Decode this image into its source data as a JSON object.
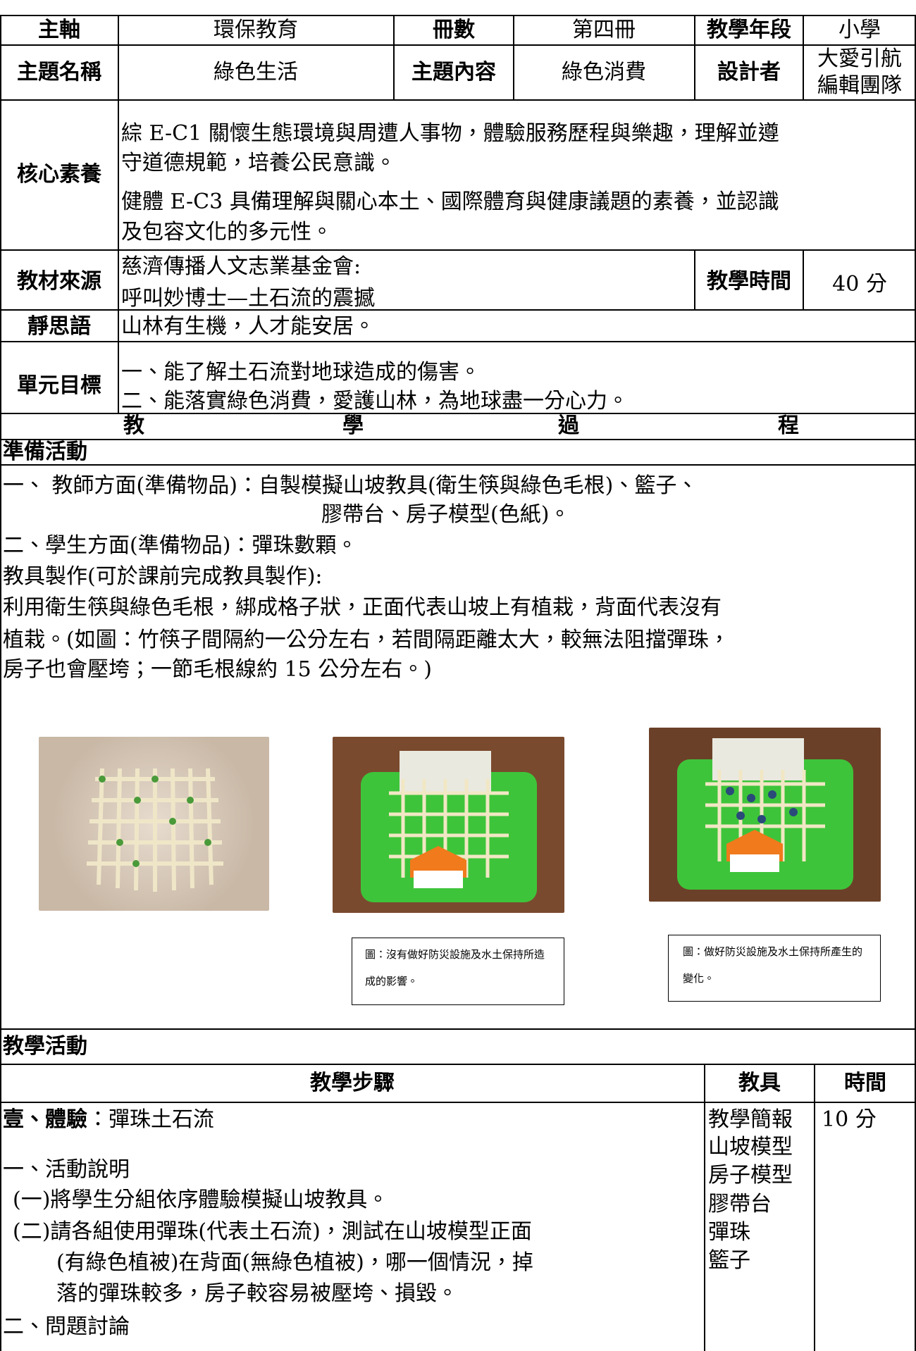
{
  "info": {
    "axis_label": "主軸",
    "axis": "環保教育",
    "volume_label": "冊數",
    "volume": "第四冊",
    "level_label": "教學年段",
    "level": "小學",
    "theme_label": "主題名稱",
    "theme": "綠色生活",
    "content_label": "主題內容",
    "content": "綠色消費",
    "designer_label": "設計者",
    "designer": [
      "大愛引航",
      "編輯團隊"
    ],
    "competency_label": "核心素養",
    "competency": [
      "綜 E-C1 關懷生態環境與周遭人事物，體驗服務歷程與樂趣，理解並遵",
      "守道德規範，培養公民意識。",
      "健體 E-C3 具備理解與關心本土、國際體育與健康議題的素養，並認識",
      "及包容文化的多元性。"
    ],
    "source_label": "教材來源",
    "source": [
      "慈濟傳播人文志業基金會:",
      "呼叫妙博士—土石流的震撼"
    ],
    "time_label": "教學時間",
    "time": "40 分",
    "motto_label": "靜思語",
    "motto": "山林有生機，人才能安居。",
    "goals_label": "單元目標",
    "goals": [
      "一、能了解土石流對地球造成的傷害。",
      "二、能落實綠色消費，愛護山林，為地球盡一分心力。"
    ]
  },
  "process": {
    "title": [
      "教",
      "學",
      "過",
      "程"
    ]
  },
  "preparation": {
    "title": "準備活動",
    "lines": [
      "一、 教師方面(準備物品)：自製模擬山坡教具(衛生筷與綠色毛根)、籃子、",
      "膠帶台、房子模型(色紙)。",
      "二、學生方面(準備物品)：彈珠數顆。",
      "教具製作(可於課前完成教具製作):",
      "利用衛生筷與綠色毛根，綁成格子狀，正面代表山坡上有植栽，背面代表沒有",
      "植栽。(如圖：竹筷子間隔約一公分左右，若間隔距離太大，較無法阻擋彈珠，",
      "房子也會壓垮；一節毛根線約 15 公分左右。)"
    ],
    "captions": [
      "圖：沒有做好防災設施及水土保持所造成的影響。",
      "圖：做好防災設施及水土保持所產生的變化。"
    ]
  },
  "activity": {
    "title": "教學活動",
    "headers": [
      "教學步驟",
      "教具",
      "時間"
    ],
    "step_heading": "壹、體驗",
    "step_subject": "：彈珠土石流",
    "steps": [
      "一、活動說明",
      "(一)將學生分組依序體驗模擬山坡教具。",
      "(二)請各組使用彈珠(代表土石流)，測試在山坡模型正面",
      "(有綠色植被)在背面(無綠色植被)，哪一個情況，掉",
      "落的彈珠較多，房子較容易被壓垮、損毀。",
      "二、問題討論"
    ],
    "tools": [
      "教學簡報",
      "山坡模型",
      "房子模型",
      "膠帶台",
      "彈珠",
      "籃子"
    ],
    "time": "10 分"
  }
}
